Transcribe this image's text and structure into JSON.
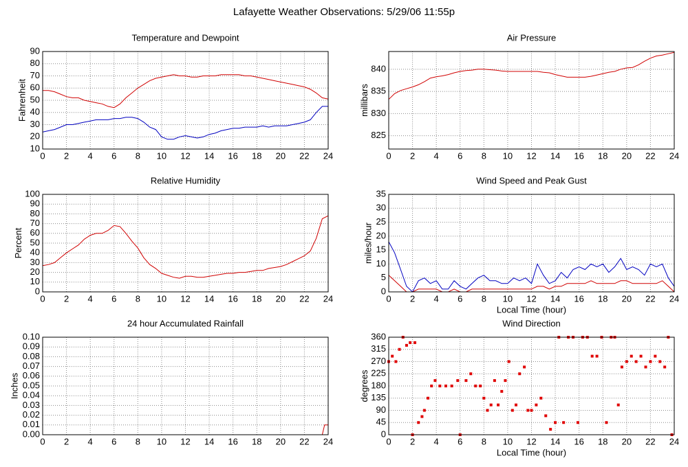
{
  "title": "Lafayette Weather Observations: 5/29/06 11:55p",
  "chart_data": [
    {
      "type": "line",
      "title": "Temperature and Dewpoint",
      "ylabel": "Fahrenheit",
      "x": [
        0,
        0.5,
        1,
        1.5,
        2,
        2.5,
        3,
        3.5,
        4,
        4.5,
        5,
        5.5,
        6,
        6.5,
        7,
        7.5,
        8,
        8.5,
        9,
        9.5,
        10,
        10.5,
        11,
        11.5,
        12,
        12.5,
        13,
        13.5,
        14,
        14.5,
        15,
        15.5,
        16,
        16.5,
        17,
        17.5,
        18,
        18.5,
        19,
        19.5,
        20,
        20.5,
        21,
        21.5,
        22,
        22.5,
        23,
        23.5,
        24
      ],
      "series": [
        {
          "color": "#d00000",
          "values": [
            58,
            58,
            57,
            55,
            53,
            52,
            52,
            50,
            49,
            48,
            47,
            45,
            44,
            47,
            52,
            56,
            60,
            63,
            66,
            68,
            69,
            70,
            71,
            70,
            70,
            69,
            69,
            70,
            70,
            70,
            71,
            71,
            71,
            71,
            70,
            70,
            69,
            68,
            67,
            66,
            65,
            64,
            63,
            62,
            61,
            59,
            56,
            52,
            51
          ]
        },
        {
          "color": "#0000c0",
          "values": [
            24,
            25,
            26,
            28,
            30,
            30,
            31,
            32,
            33,
            34,
            34,
            34,
            35,
            35,
            36,
            36,
            35,
            32,
            28,
            26,
            20,
            18,
            18,
            20,
            21,
            20,
            19,
            20,
            22,
            23,
            25,
            26,
            27,
            27,
            28,
            28,
            28,
            29,
            28,
            29,
            29,
            29,
            30,
            31,
            32,
            34,
            40,
            45,
            45
          ]
        }
      ],
      "xlim": [
        0,
        24
      ],
      "xticks": [
        0,
        2,
        4,
        6,
        8,
        10,
        12,
        14,
        16,
        18,
        20,
        22,
        24
      ],
      "ylim": [
        10,
        90
      ],
      "yticks": [
        10,
        20,
        30,
        40,
        50,
        60,
        70,
        80,
        90
      ],
      "grid": true
    },
    {
      "type": "line",
      "title": "Air Pressure",
      "ylabel": "millibars",
      "x": [
        0,
        0.5,
        1,
        1.5,
        2,
        2.5,
        3,
        3.5,
        4,
        4.5,
        5,
        5.5,
        6,
        6.5,
        7,
        7.5,
        8,
        8.5,
        9,
        9.5,
        10,
        10.5,
        11,
        11.5,
        12,
        12.5,
        13,
        13.5,
        14,
        14.5,
        15,
        15.5,
        16,
        16.5,
        17,
        17.5,
        18,
        18.5,
        19,
        19.5,
        20,
        20.5,
        21,
        21.5,
        22,
        22.5,
        23,
        23.5,
        24
      ],
      "series": [
        {
          "color": "#d00000",
          "values": [
            833.2,
            834.5,
            835.2,
            835.6,
            836,
            836.5,
            837.2,
            838,
            838.3,
            838.5,
            838.8,
            839.2,
            839.5,
            839.7,
            839.8,
            840,
            840,
            839.9,
            839.8,
            839.6,
            839.5,
            839.5,
            839.5,
            839.5,
            839.5,
            839.5,
            839.3,
            839.2,
            838.8,
            838.5,
            838.2,
            838.2,
            838.2,
            838.2,
            838.4,
            838.7,
            839,
            839.3,
            839.5,
            840,
            840.3,
            840.4,
            841,
            841.8,
            842.5,
            843,
            843.2,
            843.5,
            843.8
          ]
        }
      ],
      "xlim": [
        0,
        24
      ],
      "xticks": [
        0,
        2,
        4,
        6,
        8,
        10,
        12,
        14,
        16,
        18,
        20,
        22,
        24
      ],
      "ylim": [
        822,
        844
      ],
      "yticks": [
        825,
        830,
        835,
        840
      ],
      "grid": true
    },
    {
      "type": "line",
      "title": "Relative Humidity",
      "ylabel": "Percent",
      "x": [
        0,
        0.5,
        1,
        1.5,
        2,
        2.5,
        3,
        3.5,
        4,
        4.5,
        5,
        5.5,
        6,
        6.5,
        7,
        7.5,
        8,
        8.5,
        9,
        9.5,
        10,
        10.5,
        11,
        11.5,
        12,
        12.5,
        13,
        13.5,
        14,
        14.5,
        15,
        15.5,
        16,
        16.5,
        17,
        17.5,
        18,
        18.5,
        19,
        19.5,
        20,
        20.5,
        21,
        21.5,
        22,
        22.5,
        23,
        23.5,
        24
      ],
      "series": [
        {
          "color": "#d00000",
          "values": [
            27,
            28,
            30,
            35,
            40,
            44,
            48,
            54,
            58,
            60,
            60,
            63,
            68,
            67,
            60,
            52,
            45,
            35,
            28,
            24,
            19,
            17,
            15,
            14,
            16,
            16,
            15,
            15,
            16,
            17,
            18,
            19,
            19,
            20,
            20,
            21,
            22,
            22,
            24,
            25,
            26,
            28,
            31,
            34,
            37,
            42,
            55,
            75,
            78
          ]
        }
      ],
      "xlim": [
        0,
        24
      ],
      "xticks": [
        0,
        2,
        4,
        6,
        8,
        10,
        12,
        14,
        16,
        18,
        20,
        22,
        24
      ],
      "ylim": [
        0,
        100
      ],
      "yticks": [
        0,
        10,
        20,
        30,
        40,
        50,
        60,
        70,
        80,
        90,
        100
      ],
      "grid": true
    },
    {
      "type": "line",
      "title": "Wind Speed and Peak Gust",
      "ylabel": "miles/hour",
      "xlabel": "Local Time (hour)",
      "x": [
        0,
        0.5,
        1,
        1.5,
        2,
        2.5,
        3,
        3.5,
        4,
        4.5,
        5,
        5.5,
        6,
        6.5,
        7,
        7.5,
        8,
        8.5,
        9,
        9.5,
        10,
        10.5,
        11,
        11.5,
        12,
        12.5,
        13,
        13.5,
        14,
        14.5,
        15,
        15.5,
        16,
        16.5,
        17,
        17.5,
        18,
        18.5,
        19,
        19.5,
        20,
        20.5,
        21,
        21.5,
        22,
        22.5,
        23,
        23.5,
        24
      ],
      "series": [
        {
          "color": "#0000c0",
          "values": [
            18,
            14,
            8,
            2,
            0,
            4,
            5,
            3,
            4,
            1,
            1,
            4,
            2,
            1,
            3,
            5,
            6,
            4,
            4,
            3,
            3,
            5,
            4,
            5,
            3,
            10,
            6,
            3,
            4,
            7,
            5,
            8,
            9,
            8,
            10,
            9,
            10,
            7,
            9,
            12,
            8,
            9,
            8,
            6,
            10,
            9,
            10,
            5,
            2
          ]
        },
        {
          "color": "#d00000",
          "values": [
            6,
            4,
            2,
            0,
            0,
            1,
            1,
            1,
            1,
            0,
            0,
            1,
            0,
            0,
            1,
            1,
            1,
            1,
            1,
            1,
            1,
            1,
            1,
            1,
            1,
            2,
            2,
            1,
            2,
            2,
            3,
            3,
            3,
            3,
            4,
            3,
            3,
            3,
            3,
            4,
            4,
            3,
            3,
            3,
            3,
            3,
            4,
            2,
            0
          ]
        }
      ],
      "xlim": [
        0,
        24
      ],
      "xticks": [
        0,
        2,
        4,
        6,
        8,
        10,
        12,
        14,
        16,
        18,
        20,
        22,
        24
      ],
      "ylim": [
        0,
        35
      ],
      "yticks": [
        0,
        5,
        10,
        15,
        20,
        25,
        30,
        35
      ],
      "grid": true
    },
    {
      "type": "line",
      "title": "24 hour Accumulated Rainfall",
      "ylabel": "Inches",
      "x": [
        0,
        23.5,
        23.7,
        24
      ],
      "series": [
        {
          "color": "#d00000",
          "values": [
            0,
            0,
            0.01,
            0.01
          ]
        }
      ],
      "xlim": [
        0,
        24
      ],
      "xticks": [
        0,
        2,
        4,
        6,
        8,
        10,
        12,
        14,
        16,
        18,
        20,
        22,
        24
      ],
      "ylim": [
        0,
        0.1
      ],
      "yticks": [
        {
          "value": 0,
          "label": "0.00"
        },
        {
          "value": 0.01,
          "label": "0.01"
        },
        {
          "value": 0.02,
          "label": "0.02"
        },
        {
          "value": 0.03,
          "label": "0.03"
        },
        {
          "value": 0.04,
          "label": "0.04"
        },
        {
          "value": 0.05,
          "label": "0.05"
        },
        {
          "value": 0.06,
          "label": "0.06"
        },
        {
          "value": 0.07,
          "label": "0.07"
        },
        {
          "value": 0.08,
          "label": "0.08"
        },
        {
          "value": 0.09,
          "label": "0.09"
        },
        {
          "value": 0.1,
          "label": "0.10"
        }
      ],
      "grid": true
    },
    {
      "type": "scatter",
      "title": "Wind Direction",
      "ylabel": "degrees",
      "xlabel": "Local Time (hour)",
      "x": [
        0,
        0.3,
        0.6,
        0.9,
        1.2,
        1.5,
        1.8,
        2,
        2.2,
        2.5,
        2.8,
        3,
        3.3,
        3.6,
        3.9,
        4.3,
        4.8,
        5.3,
        5.8,
        6,
        6.5,
        6.9,
        7.3,
        7.7,
        8,
        8.3,
        8.6,
        8.9,
        9.2,
        9.5,
        9.8,
        10.1,
        10.4,
        10.7,
        11,
        11.4,
        11.7,
        12,
        12.4,
        12.8,
        13.2,
        13.6,
        14,
        14.3,
        14.7,
        15.1,
        15.5,
        15.9,
        16.3,
        16.7,
        17.1,
        17.5,
        17.9,
        18.3,
        18.7,
        19,
        19.3,
        19.6,
        20,
        20.4,
        20.8,
        21.2,
        21.6,
        22,
        22.4,
        22.8,
        23.2,
        23.5,
        23.8
      ],
      "series": [
        {
          "color": "#e00000",
          "values": [
            270,
            290,
            270,
            315,
            360,
            330,
            340,
            0,
            340,
            45,
            67,
            90,
            135,
            180,
            200,
            180,
            180,
            180,
            200,
            0,
            200,
            225,
            180,
            180,
            135,
            90,
            110,
            200,
            110,
            160,
            200,
            270,
            90,
            110,
            225,
            250,
            90,
            90,
            110,
            135,
            70,
            20,
            45,
            360,
            45,
            360,
            360,
            45,
            360,
            360,
            290,
            290,
            360,
            45,
            360,
            360,
            110,
            250,
            270,
            290,
            270,
            290,
            250,
            270,
            290,
            270,
            250,
            360,
            0
          ]
        }
      ],
      "xlim": [
        0,
        24
      ],
      "xticks": [
        0,
        2,
        4,
        6,
        8,
        10,
        12,
        14,
        16,
        18,
        20,
        22,
        24
      ],
      "ylim": [
        0,
        360
      ],
      "yticks": [
        0,
        45,
        90,
        135,
        180,
        225,
        270,
        315,
        360
      ],
      "grid": true
    }
  ]
}
